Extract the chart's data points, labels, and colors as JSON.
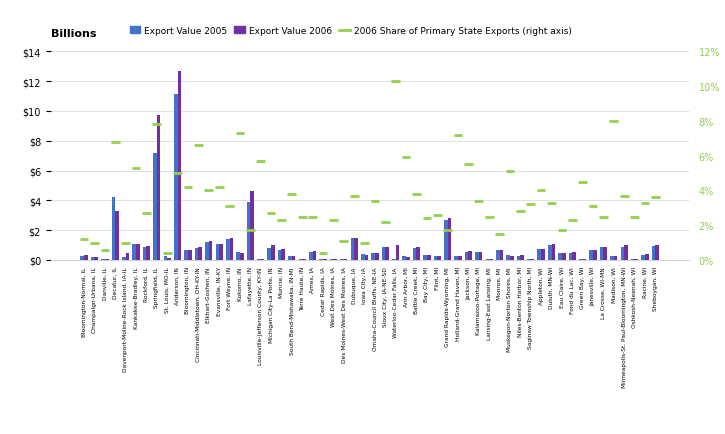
{
  "categories": [
    "Bloomington-Normal, IL",
    "Champaign-Urbana, IL",
    "Danville, IL",
    "Decatur, IL",
    "Davenport-Moline-Rock Island, IA-IL",
    "Kankakee-Bradley, IL",
    "Rockford, IL",
    "Springfield, IL",
    "St. Louis, MO-IL",
    "Anderson, IN",
    "Bloomington, IN",
    "Cincinnati-Middletown, OH-KY-IN",
    "Elkhart-Goshen, IN",
    "Evansville, IN-KY",
    "Fort Wayne, IN",
    "Kokomo, IN",
    "Lafayette, IN",
    "Louisville-Jefferson County, KY-IN",
    "Michigan City-La Porte, IN",
    "Muncie, IN",
    "South Bend-Mishawaka, IN-MI",
    "Terre Haute, IN",
    "Ames, IA",
    "Cedar Rapids, IA",
    "West Des Moines, IA",
    "Des Moines-West Des Moines, IA",
    "Dubuque, IA",
    "Iowa City, IA",
    "Omaha-Council Bluffs, NE-IA",
    "Sioux City, IA-NE-SD",
    "Waterloo-Cedar Falls, IA",
    "Ann Arbor, MI",
    "Battle Creek, MI",
    "Bay City, MI",
    "Flint, MI",
    "Grand Rapids-Wyoming, MI",
    "Holland-Grand Haven, MI",
    "Jackson, MI",
    "Kalamazoo-Portage, MI",
    "Lansing-East Lansing, MI",
    "Monroe, MI",
    "Muskegon-Norton Shores, MI",
    "Niles-Benton Harbor, MI",
    "Saginaw Township North, MI",
    "Appleton, WI",
    "Duluth, MN-WI",
    "Eau Claire, WI",
    "Fond du Lac, WI",
    "Green Bay, WI",
    "Janesville, WI",
    "La Crosse, WI-MN",
    "Madison, WI",
    "Minneapolis-St. Paul-Bloomington, MN-WI",
    "Oshkosh-Neenah, WI",
    "Racine, WI",
    "Sheboygan, WI"
  ],
  "export_2005": [
    0.3,
    0.2,
    0.05,
    4.2,
    0.2,
    1.1,
    0.9,
    7.2,
    0.3,
    11.1,
    0.7,
    0.8,
    1.2,
    1.1,
    1.4,
    0.55,
    3.9,
    0.05,
    0.8,
    0.7,
    0.3,
    0.05,
    0.55,
    0.05,
    0.05,
    0.1,
    1.5,
    0.4,
    0.45,
    0.9,
    0.05,
    0.3,
    0.8,
    0.35,
    0.3,
    2.7,
    0.25,
    0.55,
    0.55,
    0.05,
    0.65,
    0.35,
    0.3,
    0.05,
    0.75,
    1.0,
    0.45,
    0.5,
    0.05,
    0.7,
    0.85,
    0.3,
    0.9,
    0.05,
    0.35,
    0.95
  ],
  "export_2006": [
    0.35,
    0.2,
    0.05,
    3.3,
    0.45,
    1.05,
    0.95,
    9.7,
    0.15,
    12.7,
    0.7,
    0.9,
    1.3,
    1.1,
    1.5,
    0.5,
    4.6,
    0.05,
    1.0,
    0.75,
    0.3,
    0.05,
    0.6,
    0.05,
    0.05,
    0.1,
    1.5,
    0.35,
    0.5,
    0.9,
    1.0,
    0.2,
    0.9,
    0.35,
    0.3,
    2.8,
    0.25,
    0.6,
    0.55,
    0.05,
    0.65,
    0.3,
    0.35,
    0.05,
    0.75,
    1.05,
    0.45,
    0.55,
    0.05,
    0.65,
    0.85,
    0.25,
    1.0,
    0.05,
    0.4,
    1.0
  ],
  "share_2006": [
    1.2,
    1.0,
    0.6,
    6.8,
    1.0,
    5.3,
    2.7,
    7.8,
    0.4,
    5.0,
    4.2,
    6.6,
    4.0,
    4.2,
    3.1,
    7.3,
    1.7,
    5.7,
    2.7,
    2.3,
    3.8,
    2.5,
    2.5,
    0.4,
    2.3,
    1.1,
    3.7,
    1.0,
    3.4,
    2.2,
    10.3,
    5.9,
    3.8,
    2.4,
    2.6,
    1.7,
    7.2,
    5.5,
    3.4,
    2.5,
    1.5,
    5.1,
    2.8,
    3.2,
    4.0,
    3.3,
    1.7,
    2.3,
    4.5,
    3.1,
    2.5,
    8.0,
    3.7,
    2.5,
    3.3,
    3.6
  ],
  "bar_color_2005": "#4472c4",
  "bar_color_2006": "#7030a0",
  "line_color": "#92d050",
  "title": "Billions",
  "ylim_left": [
    0,
    14
  ],
  "ylim_right": [
    0,
    12
  ],
  "yticks_left": [
    0,
    2,
    4,
    6,
    8,
    10,
    12,
    14
  ],
  "yticks_right": [
    0,
    2,
    4,
    6,
    8,
    10,
    12
  ],
  "ytick_labels_left": [
    "$0",
    "$2",
    "$4",
    "$6",
    "$8",
    "$10",
    "$12",
    "$14"
  ],
  "ytick_labels_right": [
    "0%",
    "2%",
    "4%",
    "6%",
    "8%",
    "10%",
    "12%"
  ],
  "legend_labels": [
    "Export Value 2005",
    "Export Value 2006",
    "2006 Share of Primary State Exports (right axis)"
  ]
}
